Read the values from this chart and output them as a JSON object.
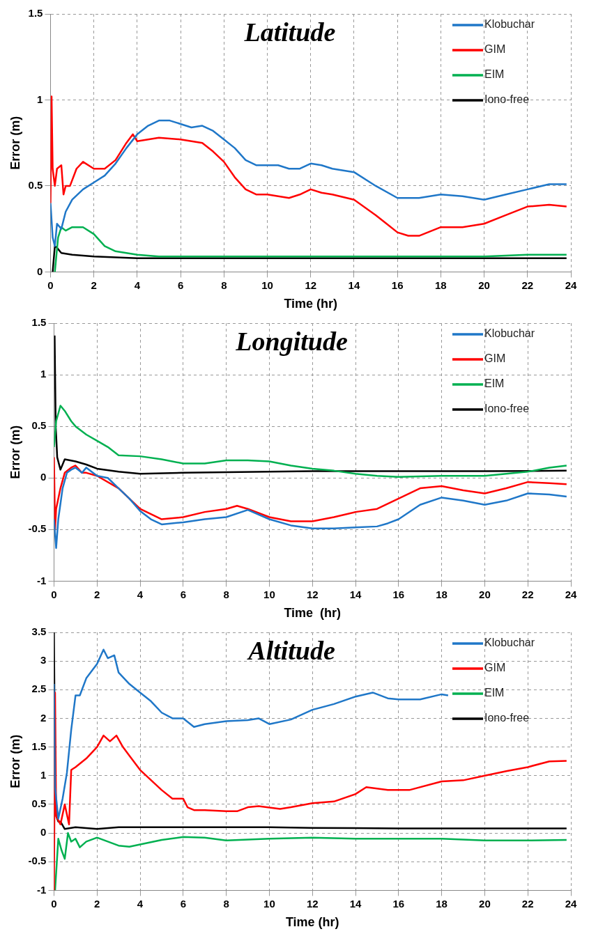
{
  "chart_data": [
    {
      "type": "line",
      "title": "Latitude",
      "xlabel": "Time (hr)",
      "ylabel": "Error (m)",
      "xlim": [
        0,
        24
      ],
      "xticks": [
        0,
        2,
        4,
        6,
        8,
        10,
        12,
        14,
        16,
        18,
        20,
        22,
        24
      ],
      "ylim": [
        0,
        1.5
      ],
      "yticks": [
        0,
        0.5,
        1,
        1.5
      ],
      "grid": true,
      "legend": "top right",
      "line_style": "solid",
      "marker": "none",
      "series": [
        {
          "name": "Klobuchar",
          "color": "#1f77c8",
          "x": [
            0,
            0.1,
            0.2,
            0.3,
            0.5,
            0.7,
            1,
            1.5,
            2,
            2.5,
            3,
            3.5,
            4,
            4.5,
            5,
            5.5,
            6,
            6.5,
            7,
            7.5,
            8,
            8.5,
            9,
            9.5,
            10,
            10.5,
            11,
            11.5,
            12,
            12.5,
            13,
            14,
            15,
            16,
            17,
            18,
            19,
            20,
            21,
            22,
            23,
            23.8
          ],
          "values": [
            0.4,
            0.2,
            0.15,
            0.28,
            0.25,
            0.35,
            0.42,
            0.48,
            0.52,
            0.56,
            0.63,
            0.72,
            0.8,
            0.85,
            0.88,
            0.88,
            0.86,
            0.84,
            0.85,
            0.82,
            0.77,
            0.72,
            0.65,
            0.62,
            0.62,
            0.62,
            0.6,
            0.6,
            0.63,
            0.62,
            0.6,
            0.58,
            0.5,
            0.43,
            0.43,
            0.45,
            0.44,
            0.42,
            0.45,
            0.48,
            0.51,
            0.51
          ]
        },
        {
          "name": "GIM",
          "color": "#ff0000",
          "x": [
            0,
            0.05,
            0.1,
            0.2,
            0.3,
            0.5,
            0.6,
            0.7,
            0.9,
            1.2,
            1.5,
            2,
            2.5,
            3,
            3.5,
            3.8,
            4,
            4.5,
            5,
            6,
            7,
            7.5,
            8,
            8.5,
            9,
            9.5,
            10,
            11,
            11.5,
            12,
            12.5,
            13,
            14,
            15,
            15.5,
            16,
            16.5,
            17,
            18,
            19,
            20,
            21,
            22,
            23,
            23.8
          ],
          "values": [
            0.4,
            1.02,
            0.6,
            0.5,
            0.6,
            0.62,
            0.45,
            0.5,
            0.5,
            0.6,
            0.64,
            0.6,
            0.6,
            0.65,
            0.75,
            0.8,
            0.76,
            0.77,
            0.78,
            0.77,
            0.75,
            0.7,
            0.64,
            0.55,
            0.48,
            0.45,
            0.45,
            0.43,
            0.45,
            0.48,
            0.46,
            0.45,
            0.42,
            0.33,
            0.28,
            0.23,
            0.21,
            0.21,
            0.26,
            0.26,
            0.28,
            0.33,
            0.38,
            0.39,
            0.38
          ]
        },
        {
          "name": "EIM",
          "color": "#00b050",
          "x": [
            0.2,
            0.35,
            0.5,
            0.7,
            1,
            1.5,
            2,
            2.5,
            3,
            4,
            5,
            6,
            8,
            10,
            12,
            16,
            20,
            22,
            23.8
          ],
          "values": [
            0,
            0.2,
            0.26,
            0.24,
            0.26,
            0.26,
            0.22,
            0.15,
            0.12,
            0.1,
            0.09,
            0.09,
            0.09,
            0.09,
            0.09,
            0.09,
            0.09,
            0.1,
            0.1
          ]
        },
        {
          "name": "Iono-free",
          "color": "#000000",
          "x": [
            0.1,
            0.2,
            0.3,
            0.5,
            1,
            2,
            4,
            8,
            12,
            16,
            20,
            23.8
          ],
          "values": [
            0,
            0.15,
            0.14,
            0.11,
            0.1,
            0.09,
            0.08,
            0.08,
            0.08,
            0.08,
            0.08,
            0.08
          ]
        }
      ]
    },
    {
      "type": "line",
      "title": "Longitude",
      "xlabel": "Time  (hr)",
      "ylabel": "Error (m)",
      "xlim": [
        0,
        24
      ],
      "xticks": [
        0,
        2,
        4,
        6,
        8,
        10,
        12,
        14,
        16,
        18,
        20,
        22,
        24
      ],
      "ylim": [
        -1,
        1.5
      ],
      "yticks": [
        -1,
        -0.5,
        0,
        0.5,
        1,
        1.5
      ],
      "grid": true,
      "legend": "top right",
      "line_style": "solid",
      "marker": "none",
      "series": [
        {
          "name": "Klobuchar",
          "color": "#1f77c8",
          "x": [
            0,
            0.1,
            0.2,
            0.4,
            0.6,
            0.8,
            1,
            1.3,
            1.5,
            2,
            2.5,
            3,
            3.5,
            4,
            4.5,
            5,
            6,
            7,
            8,
            9,
            10,
            11,
            12,
            13,
            14,
            15,
            15.5,
            16,
            17,
            18,
            19,
            20,
            21,
            22,
            23,
            23.8
          ],
          "values": [
            -0.4,
            -0.68,
            -0.4,
            -0.1,
            0.05,
            0.08,
            0.1,
            0.05,
            0.1,
            0.02,
            0,
            -0.1,
            -0.2,
            -0.32,
            -0.4,
            -0.45,
            -0.43,
            -0.4,
            -0.38,
            -0.31,
            -0.4,
            -0.46,
            -0.49,
            -0.49,
            -0.48,
            -0.47,
            -0.44,
            -0.4,
            -0.26,
            -0.19,
            -0.22,
            -0.26,
            -0.22,
            -0.15,
            -0.16,
            -0.18
          ]
        },
        {
          "name": "GIM",
          "color": "#ff0000",
          "x": [
            0,
            0.05,
            0.1,
            0.3,
            0.5,
            0.8,
            1,
            1.3,
            1.5,
            2,
            3,
            4,
            4.5,
            5,
            6,
            7,
            8,
            8.5,
            9,
            10,
            11,
            12,
            13,
            14,
            15,
            16,
            17,
            18,
            19,
            20,
            21,
            22,
            23,
            23.8
          ],
          "values": [
            0.2,
            -0.5,
            -0.3,
            -0.1,
            0.05,
            0.1,
            0.12,
            0.05,
            0.05,
            0.02,
            -0.1,
            -0.3,
            -0.35,
            -0.4,
            -0.38,
            -0.33,
            -0.3,
            -0.27,
            -0.3,
            -0.38,
            -0.42,
            -0.42,
            -0.38,
            -0.33,
            -0.3,
            -0.2,
            -0.1,
            -0.08,
            -0.12,
            -0.15,
            -0.1,
            -0.04,
            -0.05,
            -0.06
          ]
        },
        {
          "name": "EIM",
          "color": "#00b050",
          "x": [
            0,
            0.1,
            0.3,
            0.5,
            0.8,
            1,
            1.5,
            2,
            2.5,
            3,
            4,
            5,
            6,
            7,
            8,
            9,
            10,
            11,
            12,
            13,
            14,
            15,
            16,
            18,
            20,
            22,
            23,
            23.8
          ],
          "values": [
            0.3,
            0.55,
            0.7,
            0.65,
            0.55,
            0.5,
            0.42,
            0.36,
            0.3,
            0.22,
            0.21,
            0.18,
            0.14,
            0.14,
            0.17,
            0.17,
            0.16,
            0.12,
            0.09,
            0.07,
            0.04,
            0.02,
            0.01,
            0.02,
            0.02,
            0.06,
            0.1,
            0.12
          ]
        },
        {
          "name": "Iono-free",
          "color": "#000000",
          "x": [
            0.03,
            0.08,
            0.15,
            0.3,
            0.5,
            1,
            1.5,
            2,
            3,
            4,
            6,
            8,
            10,
            12,
            16,
            20,
            23.8
          ],
          "values": [
            1.38,
            0.5,
            0.2,
            0.08,
            0.18,
            0.16,
            0.13,
            0.09,
            0.06,
            0.04,
            0.05,
            0.055,
            0.06,
            0.065,
            0.065,
            0.065,
            0.07
          ]
        }
      ]
    },
    {
      "type": "line",
      "title": "Altitude",
      "xlabel": "Time (hr)",
      "ylabel": "Error (m)",
      "xlim": [
        0,
        24
      ],
      "xticks": [
        0,
        2,
        4,
        6,
        8,
        10,
        12,
        14,
        16,
        18,
        20,
        22,
        24
      ],
      "ylim": [
        -1,
        3.5
      ],
      "yticks": [
        -1,
        -0.5,
        0,
        0.5,
        1,
        1.5,
        2,
        2.5,
        3,
        3.5
      ],
      "grid": true,
      "legend": "top right",
      "line_style": "solid",
      "marker": "none",
      "series": [
        {
          "name": "Klobuchar",
          "color": "#1f77c8",
          "x": [
            0,
            0.05,
            0.2,
            0.4,
            0.6,
            0.8,
            1,
            1.2,
            1.5,
            2,
            2.3,
            2.5,
            2.8,
            3,
            3.5,
            4,
            4.5,
            5,
            5.5,
            6,
            6.5,
            7,
            8,
            9,
            9.5,
            10,
            11,
            12,
            13,
            14,
            14.8,
            15.5,
            16,
            17,
            18,
            18.3
          ],
          "values": [
            2.6,
            0.8,
            0.25,
            0.6,
            1.05,
            1.8,
            2.4,
            2.4,
            2.7,
            2.95,
            3.2,
            3.05,
            3.1,
            2.8,
            2.6,
            2.45,
            2.3,
            2.1,
            2,
            2,
            1.85,
            1.9,
            1.95,
            1.97,
            2,
            1.9,
            1.98,
            2.15,
            2.25,
            2.38,
            2.45,
            2.35,
            2.33,
            2.33,
            2.42,
            2.4
          ]
        },
        {
          "name": "GIM",
          "color": "#ff0000",
          "x": [
            0,
            0.05,
            0.1,
            0.3,
            0.5,
            0.7,
            0.8,
            1,
            1.5,
            2,
            2.3,
            2.6,
            2.9,
            3.2,
            3.5,
            4,
            5,
            5.5,
            6,
            6.2,
            6.5,
            7,
            8,
            8.5,
            9,
            9.5,
            10.5,
            11,
            12,
            13,
            14,
            14.5,
            15.5,
            16.5,
            18,
            19,
            20,
            21,
            22,
            23,
            23.8
          ],
          "values": [
            -1,
            2.45,
            0.3,
            0.15,
            0.5,
            0.15,
            1.1,
            1.15,
            1.3,
            1.5,
            1.7,
            1.6,
            1.7,
            1.5,
            1.35,
            1.1,
            0.75,
            0.6,
            0.6,
            0.45,
            0.4,
            0.4,
            0.38,
            0.38,
            0.45,
            0.47,
            0.42,
            0.45,
            0.52,
            0.55,
            0.68,
            0.8,
            0.75,
            0.75,
            0.9,
            0.92,
            1.0,
            1.08,
            1.15,
            1.25,
            1.26
          ]
        },
        {
          "name": "EIM",
          "color": "#00b050",
          "x": [
            0.05,
            0.2,
            0.35,
            0.5,
            0.65,
            0.8,
            1,
            1.2,
            1.5,
            2,
            2.5,
            3,
            3.5,
            4,
            5,
            6,
            7,
            8,
            10,
            12,
            14,
            16,
            18,
            20,
            22,
            23.8
          ],
          "values": [
            -1,
            -0.1,
            -0.3,
            -0.45,
            0,
            -0.15,
            -0.1,
            -0.25,
            -0.15,
            -0.08,
            -0.15,
            -0.22,
            -0.24,
            -0.2,
            -0.12,
            -0.07,
            -0.08,
            -0.13,
            -0.1,
            -0.08,
            -0.1,
            -0.1,
            -0.1,
            -0.13,
            -0.13,
            -0.12
          ]
        },
        {
          "name": "Iono-free",
          "color": "#000000",
          "x": [
            0,
            0.05,
            0.1,
            0.2,
            0.3,
            0.5,
            1,
            2,
            3,
            4,
            6,
            8,
            10,
            12,
            16,
            20,
            23.8
          ],
          "values": [
            3.5,
            0.8,
            0.3,
            0.2,
            0.2,
            0.07,
            0.1,
            0.07,
            0.1,
            0.1,
            0.1,
            0.1,
            0.1,
            0.09,
            0.08,
            0.08,
            0.08
          ]
        }
      ]
    }
  ]
}
